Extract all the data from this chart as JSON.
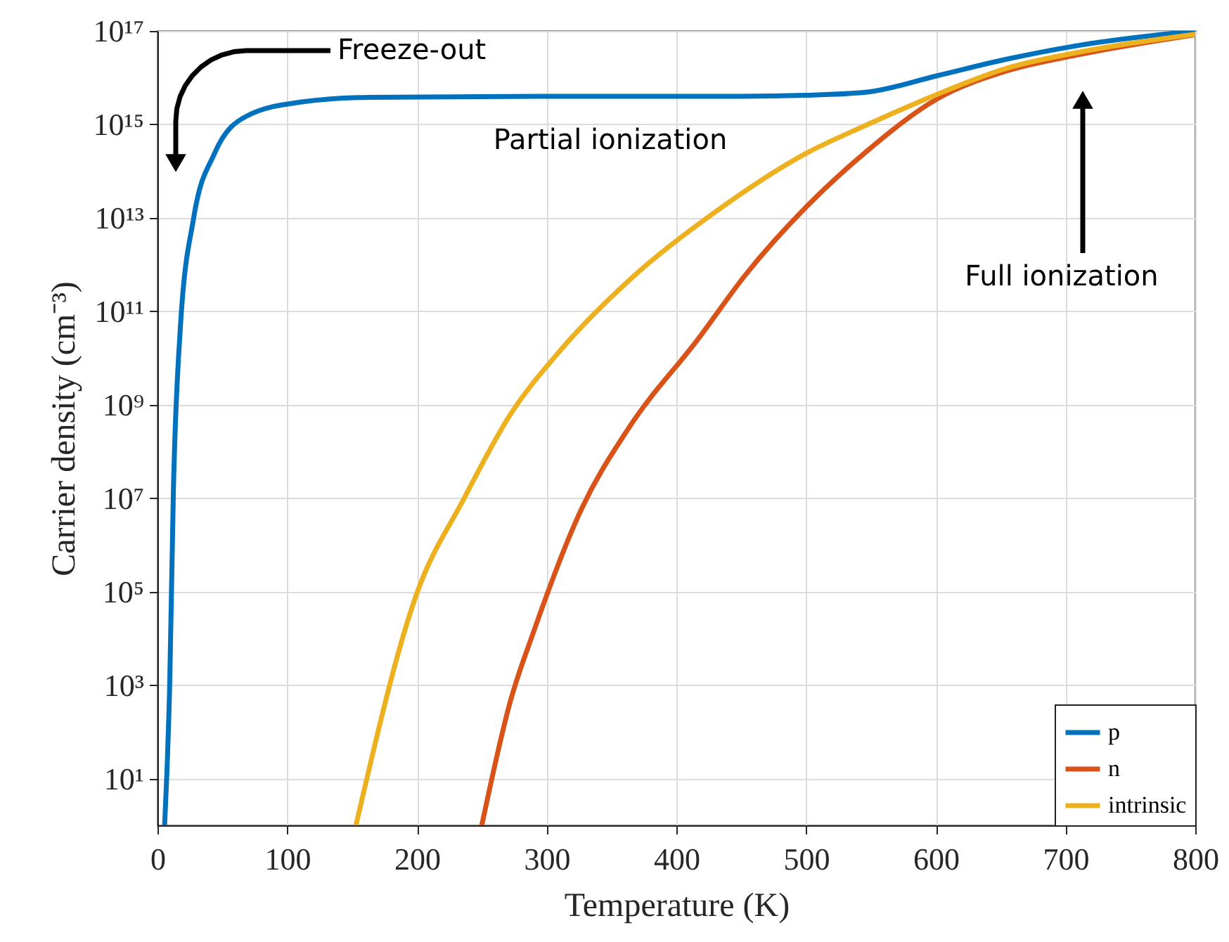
{
  "chart_data": {
    "type": "line",
    "xlabel": "Temperature (K)",
    "ylabel": "Carrier density (cm⁻³)",
    "xlim": [
      0,
      800
    ],
    "xticks": [
      0,
      100,
      200,
      300,
      400,
      500,
      600,
      700,
      800
    ],
    "ylim": [
      1,
      1e+17
    ],
    "log": "y",
    "yticks": [
      {
        "value": 10,
        "label": "10¹"
      },
      {
        "value": 1000,
        "label": "10³"
      },
      {
        "value": 100000,
        "label": "10⁵"
      },
      {
        "value": 10000000,
        "label": "10⁷"
      },
      {
        "value": 1000000000.0,
        "label": "10⁹"
      },
      {
        "value": 100000000000.0,
        "label": "10¹¹"
      },
      {
        "value": 10000000000000.0,
        "label": "10¹³"
      },
      {
        "value": 1000000000000000.0,
        "label": "10¹⁵"
      },
      {
        "value": 1e+17,
        "label": "10¹⁷"
      }
    ],
    "grid": true,
    "legend": "bottom right",
    "line_style": "solid",
    "marker": "none",
    "series": [
      {
        "name": "p",
        "color": "#0072bd",
        "x": [
          5.5,
          9.4,
          12.3,
          17.6,
          27.9,
          44,
          68.6,
          110,
          163,
          300,
          450,
          500,
          547,
          601,
          655,
          710,
          800
        ],
        "values": [
          1,
          1000.0,
          16000000.0,
          43000000000.0,
          10000000000000.0,
          240000000000000.0,
          1500000000000000.0,
          3000000000000000.0,
          3800000000000000.0,
          4000000000000000.0,
          4000000000000000.0,
          4200000000000000.0,
          4900000000000000.0,
          1.1e+16,
          2.5e+16,
          4.9e+16,
          1e+17
        ]
      },
      {
        "name": "n",
        "color": "#d95319",
        "x": [
          250,
          272,
          290,
          327,
          363,
          417,
          453,
          500,
          547,
          601,
          655,
          710,
          800
        ],
        "values": [
          1,
          450.0,
          14000.0,
          6000000.0,
          310000000.0,
          26000000000.0,
          590000000000.0,
          17000000000000.0,
          270000000000000.0,
          3500000000000000.0,
          1.4e+16,
          3.1e+16,
          8.3e+16
        ]
      },
      {
        "name": "intrinsic",
        "color": "#edb120",
        "x": [
          153,
          200,
          236,
          272,
          309,
          365,
          431,
          500,
          547,
          601,
          655,
          710,
          800
        ],
        "values": [
          1,
          93000.0,
          9500000.0,
          620000000.0,
          13000000000.0,
          500000000000.0,
          14000000000000.0,
          240000000000000.0,
          980000000000000.0,
          4400000000000000.0,
          1.6e+16,
          3.5e+16,
          8.5e+16
        ]
      }
    ],
    "annotations": [
      "Freeze-out",
      "Partial ionization",
      "Full ionization"
    ]
  }
}
